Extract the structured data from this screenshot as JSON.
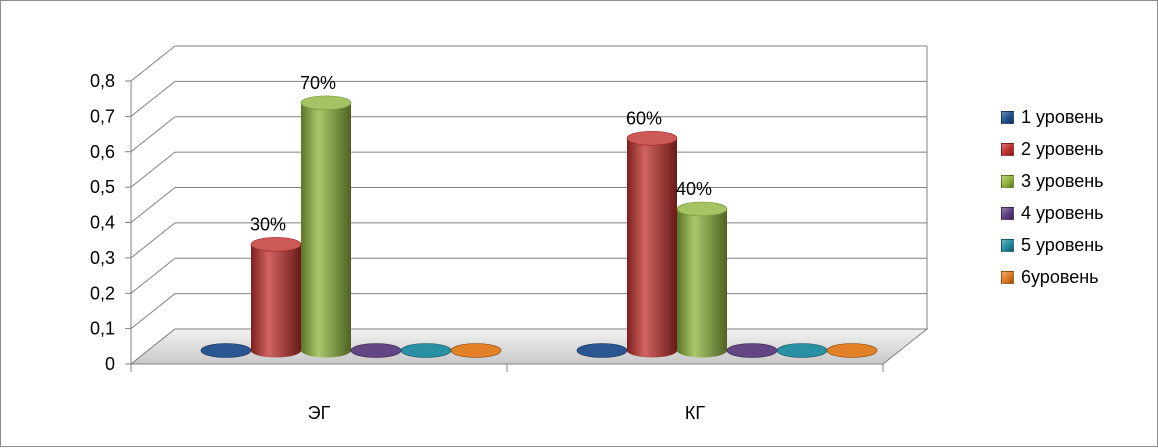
{
  "chart_data": {
    "type": "bar",
    "style": "3d-cylinder",
    "categories": [
      "ЭГ",
      "КГ"
    ],
    "series": [
      {
        "name": "1 уровень",
        "color": "#1f4e8c",
        "values": [
          0,
          0
        ],
        "labels": [
          "",
          ""
        ]
      },
      {
        "name": "2 уровень",
        "color": "#c0302d",
        "values": [
          0.3,
          0.6
        ],
        "labels": [
          "30%",
          "60%"
        ]
      },
      {
        "name": "3 уровень",
        "color": "#8db43c",
        "values": [
          0.7,
          0.4
        ],
        "labels": [
          "70%",
          "40%"
        ]
      },
      {
        "name": "4 уровень",
        "color": "#5b3b7e",
        "values": [
          0,
          0
        ],
        "labels": [
          "",
          ""
        ]
      },
      {
        "name": "5 уровень",
        "color": "#1f8a9e",
        "values": [
          0,
          0
        ],
        "labels": [
          "",
          ""
        ]
      },
      {
        "name": "6уровень",
        "color": "#e07a1c",
        "values": [
          0,
          0
        ],
        "labels": [
          "",
          ""
        ]
      }
    ],
    "y_ticks": [
      "0",
      "0,1",
      "0,2",
      "0,3",
      "0,4",
      "0,5",
      "0,6",
      "0,7",
      "0,8"
    ],
    "ylim": [
      0,
      0.8
    ],
    "grid": true,
    "legend_position": "right"
  }
}
